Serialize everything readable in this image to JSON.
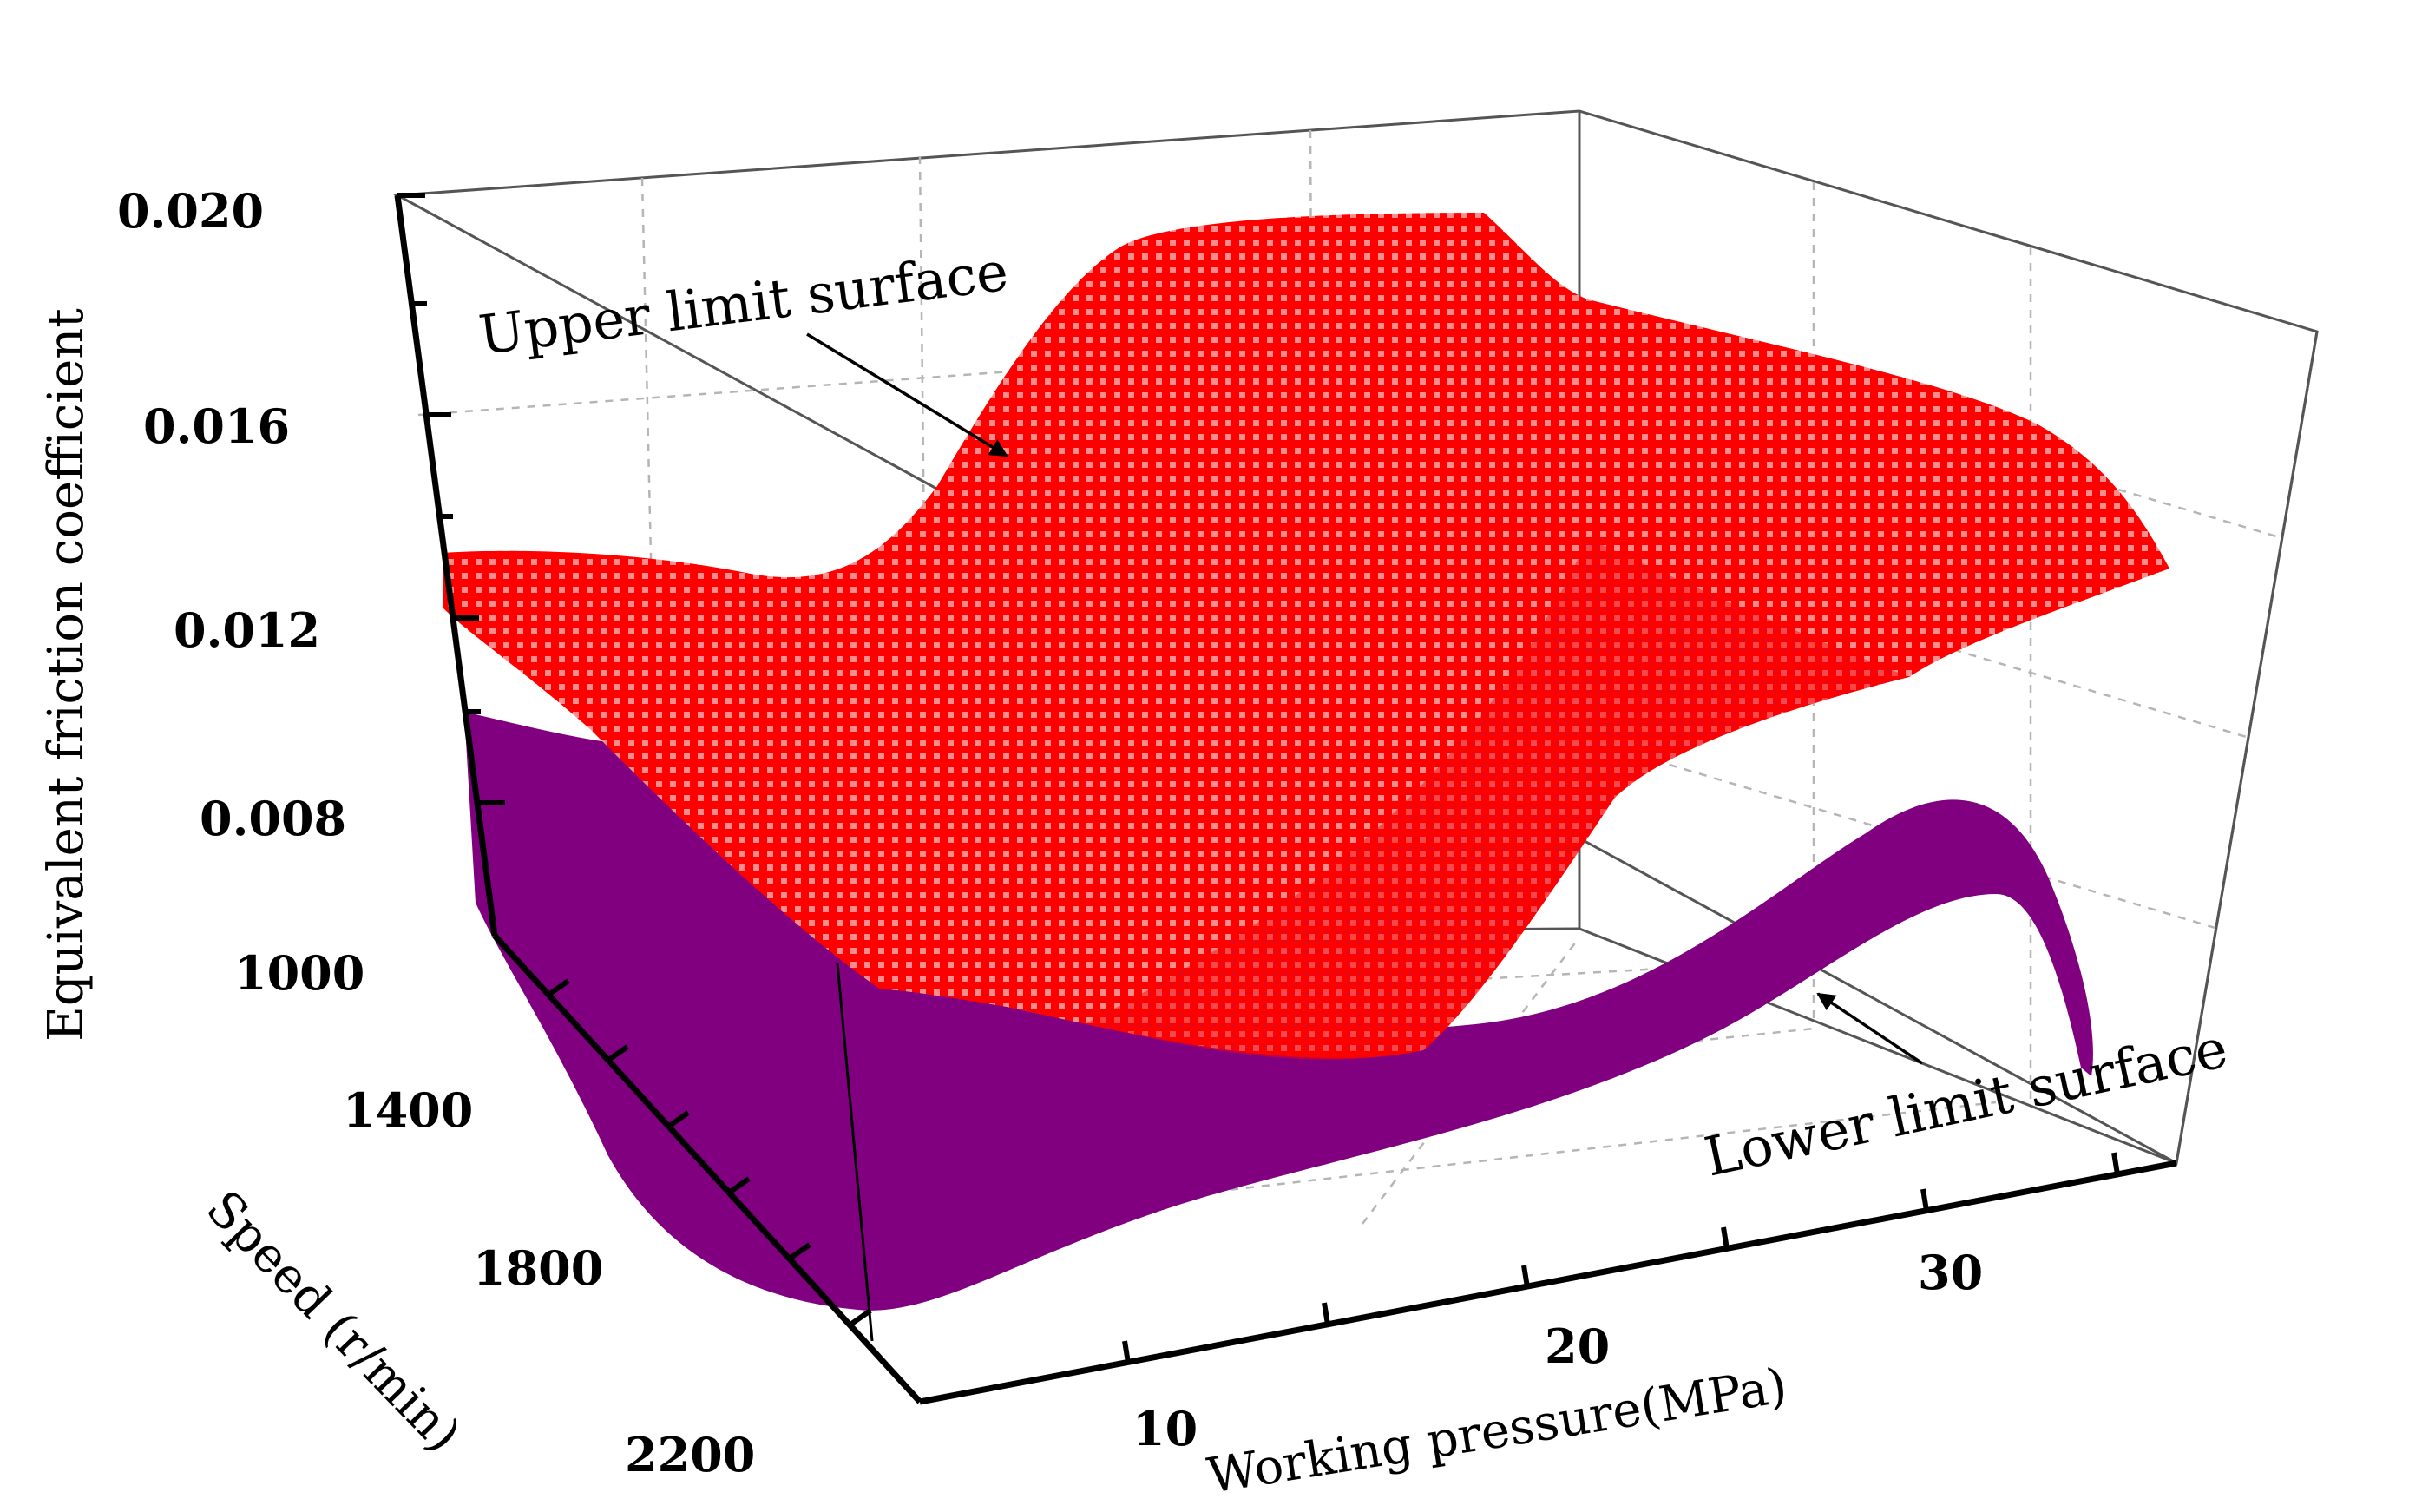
{
  "chart_data": {
    "type": "surface",
    "zlabel": "Equivalent friction coefficient",
    "ylabel": "Speed (r/min)",
    "xlabel": "Working pressure(MPa)",
    "z_ticks": [
      "0.020",
      "0.016",
      "0.012",
      "0.008"
    ],
    "y_ticks": [
      "1000",
      "1400",
      "1800",
      "2200"
    ],
    "x_ticks": [
      "10",
      "20",
      "30"
    ],
    "zlim": [
      0.005,
      0.02
    ],
    "ylim": [
      1000,
      2200
    ],
    "xlim": [
      5,
      35
    ],
    "grid": true,
    "series": [
      {
        "name": "Upper limit surface",
        "color": "#ff0000",
        "style": "wireframe",
        "pressure": [
          5,
          10,
          15,
          20,
          25,
          30,
          35
        ],
        "speed": [
          1000,
          2200
        ],
        "values": [
          [
            0.0115,
            0.0125,
            0.019,
            0.019,
            0.016,
            0.015,
            0.013
          ],
          [
            0.0085,
            0.007,
            0.006,
            0.0055,
            0.006,
            0.007,
            0.008
          ]
        ]
      },
      {
        "name": "Lower limit surface",
        "color": "#800080",
        "style": "solid",
        "pressure": [
          5,
          10,
          15,
          20,
          25,
          30,
          35
        ],
        "speed": [
          1000,
          2200
        ],
        "values": [
          [
            0.01,
            0.009,
            0.0095,
            0.01,
            0.0095,
            0.009,
            0.0075
          ],
          [
            0.0075,
            0.004,
            0.0035,
            0.0045,
            0.005,
            0.006,
            0.004
          ]
        ]
      }
    ],
    "annotations": [
      {
        "text": "Upper limit surface",
        "target": "upper"
      },
      {
        "text": "Lower limit surface",
        "target": "lower"
      }
    ]
  }
}
